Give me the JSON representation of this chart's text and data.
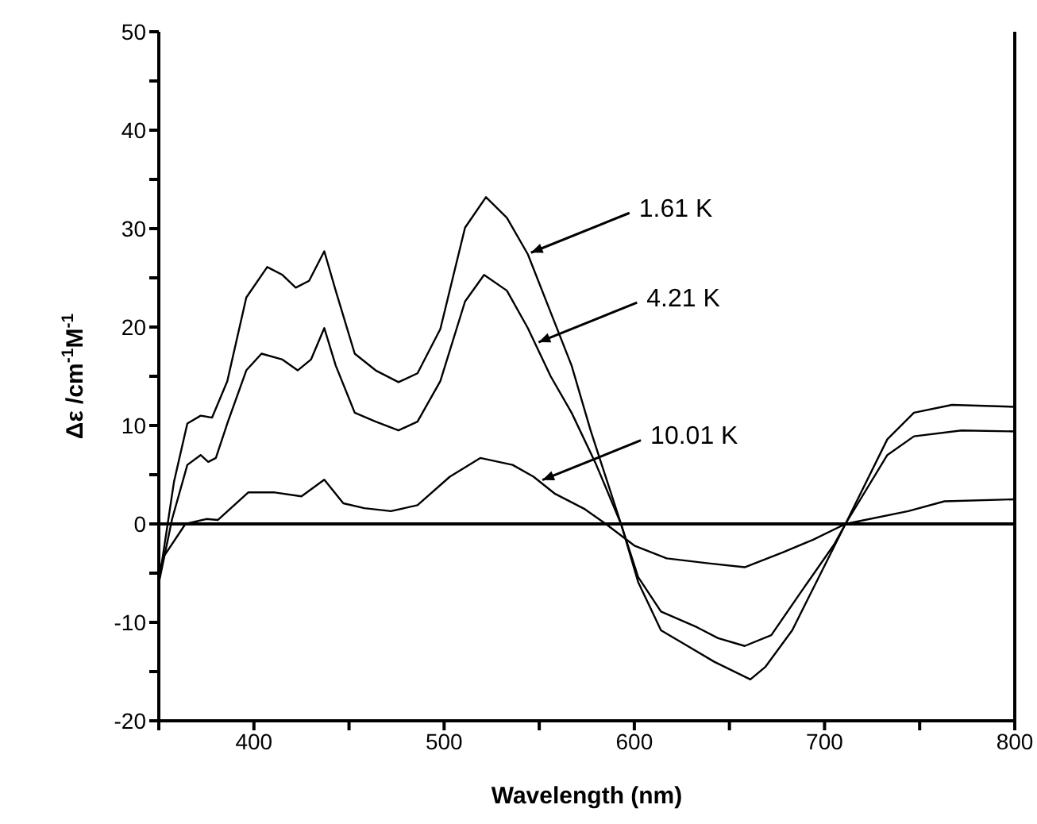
{
  "chart_data": {
    "type": "line",
    "xlabel": "Wavelength (nm)",
    "ylabel": "Δε /cm$^{-1}$M$^{-1}$",
    "xlim": [
      350,
      800
    ],
    "xticks": [
      {
        "value": 350,
        "label": null
      },
      400,
      {
        "value": 450,
        "label": null
      },
      500,
      {
        "value": 550,
        "label": null
      },
      600,
      {
        "value": 650,
        "label": null
      },
      700,
      {
        "value": 750,
        "label": null
      },
      800
    ],
    "ylim": [
      -20,
      50
    ],
    "yticks": [
      -20,
      {
        "value": -15,
        "label": null
      },
      -10,
      {
        "value": -5,
        "label": null
      },
      0,
      {
        "value": 5,
        "label": null
      },
      10,
      {
        "value": 15,
        "label": null
      },
      20,
      {
        "value": 25,
        "label": null
      },
      30,
      {
        "value": 35,
        "label": null
      },
      40,
      {
        "value": 45,
        "label": null
      },
      50
    ],
    "ref_lines": [
      {
        "axis": "y",
        "value": 0,
        "color": "#000000"
      }
    ],
    "annotations": [
      {
        "text": "1.61 K",
        "x": 544,
        "y": 27.4
      },
      {
        "text": "4.21 K",
        "x": 548,
        "y": 18.3
      },
      {
        "text": "10.01 K",
        "x": 550,
        "y": 4.3
      }
    ],
    "series": [
      {
        "color": "#000000",
        "x": [
          350,
          358,
          365,
          372,
          378,
          386,
          396,
          407,
          415,
          422,
          429,
          437,
          443,
          453,
          464,
          476,
          486,
          498,
          511,
          522,
          533,
          544,
          556,
          567,
          577,
          593,
          602,
          614,
          628,
          642,
          661,
          669,
          683,
          697,
          711,
          733,
          747,
          767,
          800
        ],
        "values": [
          -6,
          4.3,
          10.2,
          11,
          10.8,
          14.5,
          23,
          26.1,
          25.3,
          24,
          24.7,
          27.7,
          23.7,
          17.3,
          15.6,
          14.4,
          15.3,
          19.8,
          30.1,
          33.2,
          31.1,
          27.4,
          21.5,
          16.1,
          9.5,
          0,
          -5.9,
          -10.8,
          -12.4,
          -14,
          -15.8,
          -14.5,
          -10.8,
          -5.4,
          0,
          8.6,
          11.3,
          12.1,
          11.9
        ]
      },
      {
        "color": "#000000",
        "x": [
          350,
          357,
          365,
          372,
          376,
          380,
          386,
          396,
          404,
          415,
          423,
          430,
          437,
          443,
          453,
          464,
          476,
          486,
          498,
          511,
          521,
          533,
          544,
          556,
          567,
          580,
          593,
          602,
          614,
          633,
          644,
          658,
          672,
          688,
          705,
          711,
          733,
          747,
          772,
          800
        ],
        "values": [
          -6,
          0.5,
          6,
          7,
          6.3,
          6.7,
          10.2,
          15.6,
          17.3,
          16.7,
          15.6,
          16.7,
          19.9,
          16.1,
          11.3,
          10.4,
          9.5,
          10.4,
          14.5,
          22.6,
          25.3,
          23.7,
          19.9,
          15,
          11.3,
          6,
          0,
          -5.4,
          -8.9,
          -10.5,
          -11.6,
          -12.4,
          -11.3,
          -6.8,
          -2.1,
          0,
          7,
          8.9,
          9.5,
          9.4
        ]
      },
      {
        "color": "#000000",
        "x": [
          350,
          353,
          364,
          375,
          381,
          397,
          411,
          425,
          437,
          447,
          458,
          472,
          486,
          503,
          519,
          536,
          547,
          558,
          574,
          585,
          600,
          617,
          639,
          658,
          678,
          694,
          711,
          744,
          763,
          800
        ],
        "values": [
          -5,
          -3.2,
          0,
          0.5,
          0.4,
          3.2,
          3.2,
          2.8,
          4.5,
          2.1,
          1.6,
          1.3,
          1.9,
          4.8,
          6.7,
          6,
          4.8,
          3.1,
          1.5,
          0,
          -2.2,
          -3.5,
          -4,
          -4.4,
          -2.9,
          -1.6,
          0,
          1.3,
          2.3,
          2.5
        ]
      }
    ]
  }
}
